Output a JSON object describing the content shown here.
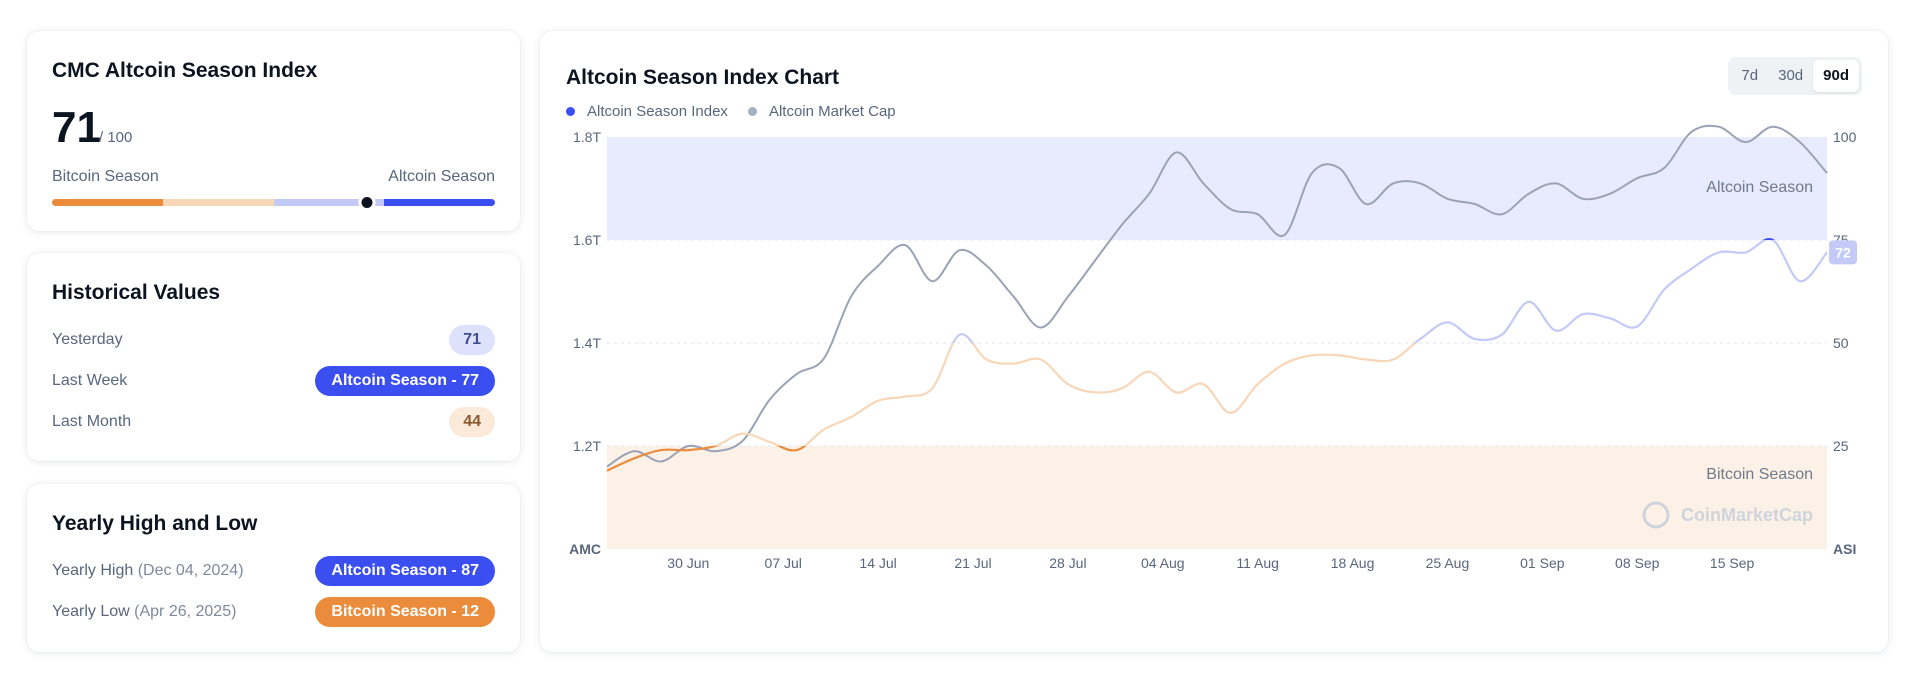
{
  "index_card": {
    "title": "CMC Altcoin Season Index",
    "value": "71",
    "suffix": "/ 100",
    "value_fraction": 0.71,
    "left_label": "Bitcoin Season",
    "right_label": "Altcoin Season"
  },
  "historical": {
    "title": "Historical Values",
    "rows": [
      {
        "label": "Yesterday",
        "value": "71"
      },
      {
        "label": "Last Week",
        "value": "Altcoin Season - 77"
      },
      {
        "label": "Last Month",
        "value": "44"
      }
    ]
  },
  "yearly": {
    "title": "Yearly High and Low",
    "high": {
      "label": "Yearly High",
      "date": "(Dec 04, 2024)",
      "value": "Altcoin Season - 87"
    },
    "low": {
      "label": "Yearly Low",
      "date": "(Apr 26, 2025)",
      "value": "Bitcoin Season - 12"
    }
  },
  "chart_card": {
    "title": "Altcoin Season Index Chart",
    "ranges": [
      "7d",
      "30d",
      "90d"
    ],
    "active_range": "90d",
    "legend": [
      {
        "label": "Altcoin Season Index",
        "color": "#3b4ef0"
      },
      {
        "label": "Altcoin Market Cap",
        "color": "#a6b0c3"
      }
    ],
    "current_badge": "72",
    "watermark": "CoinMarketCap"
  },
  "colors": {
    "blue": "#3b4ef0",
    "orange": "#ea8c3c",
    "gray_line": "#9aa3b5",
    "altcoin_zone": "#e8ebfd",
    "bitcoin_zone": "#fcf1e7"
  },
  "chart_data": {
    "type": "line",
    "x": [
      "2025-06-24",
      "2025-06-26",
      "2025-06-28",
      "2025-06-30",
      "2025-07-02",
      "2025-07-04",
      "2025-07-06",
      "2025-07-08",
      "2025-07-10",
      "2025-07-12",
      "2025-07-14",
      "2025-07-16",
      "2025-07-18",
      "2025-07-20",
      "2025-07-22",
      "2025-07-24",
      "2025-07-26",
      "2025-07-28",
      "2025-07-30",
      "2025-08-01",
      "2025-08-03",
      "2025-08-05",
      "2025-08-07",
      "2025-08-09",
      "2025-08-11",
      "2025-08-13",
      "2025-08-15",
      "2025-08-17",
      "2025-08-19",
      "2025-08-21",
      "2025-08-23",
      "2025-08-25",
      "2025-08-27",
      "2025-08-29",
      "2025-08-31",
      "2025-09-02",
      "2025-09-04",
      "2025-09-06",
      "2025-09-08",
      "2025-09-10",
      "2025-09-12",
      "2025-09-14",
      "2025-09-16",
      "2025-09-18",
      "2025-09-20",
      "2025-09-22"
    ],
    "x_ticks": [
      "30 Jun",
      "07 Jul",
      "14 Jul",
      "21 Jul",
      "28 Jul",
      "04 Aug",
      "11 Aug",
      "18 Aug",
      "25 Aug",
      "01 Sep",
      "08 Sep",
      "15 Sep"
    ],
    "series": [
      {
        "name": "Altcoin Season Index",
        "axis": "right",
        "values": [
          19,
          22,
          24,
          24,
          25,
          28,
          26,
          24,
          29,
          32,
          36,
          37,
          39,
          52,
          46,
          45,
          46,
          40,
          38,
          39,
          43,
          38,
          40,
          33,
          40,
          45,
          47,
          47,
          46,
          46,
          51,
          55,
          51,
          52,
          60,
          53,
          57,
          56,
          54,
          63,
          68,
          72,
          72,
          75,
          65,
          72
        ]
      },
      {
        "name": "Altcoin Market Cap",
        "axis": "left",
        "values": [
          1.16,
          1.19,
          1.17,
          1.2,
          1.19,
          1.21,
          1.29,
          1.34,
          1.37,
          1.49,
          1.55,
          1.59,
          1.52,
          1.58,
          1.55,
          1.49,
          1.43,
          1.49,
          1.56,
          1.63,
          1.69,
          1.77,
          1.71,
          1.66,
          1.65,
          1.61,
          1.73,
          1.74,
          1.67,
          1.71,
          1.71,
          1.68,
          1.67,
          1.65,
          1.69,
          1.71,
          1.68,
          1.69,
          1.72,
          1.74,
          1.81,
          1.82,
          1.79,
          1.82,
          1.79,
          1.73
        ]
      }
    ],
    "y_left": {
      "label": "AMC",
      "ticks": [
        "1.2T",
        "1.4T",
        "1.6T",
        "1.8T"
      ],
      "range": [
        1.0,
        1.8
      ]
    },
    "y_right": {
      "label": "ASI",
      "ticks": [
        "25",
        "50",
        "75",
        "100"
      ],
      "range": [
        0,
        100
      ]
    },
    "zones": [
      {
        "label": "Altcoin Season",
        "from": 75,
        "to": 100
      },
      {
        "label": "Bitcoin Season",
        "from": 0,
        "to": 25
      }
    ]
  }
}
